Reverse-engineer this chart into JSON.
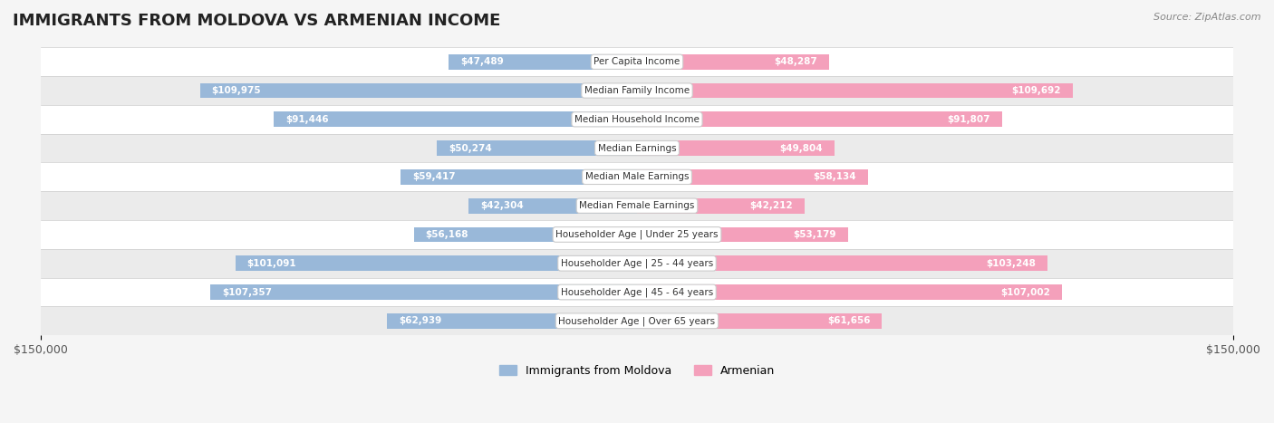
{
  "title": "IMMIGRANTS FROM MOLDOVA VS ARMENIAN INCOME",
  "source": "Source: ZipAtlas.com",
  "categories": [
    "Per Capita Income",
    "Median Family Income",
    "Median Household Income",
    "Median Earnings",
    "Median Male Earnings",
    "Median Female Earnings",
    "Householder Age | Under 25 years",
    "Householder Age | 25 - 44 years",
    "Householder Age | 45 - 64 years",
    "Householder Age | Over 65 years"
  ],
  "moldova_values": [
    47489,
    109975,
    91446,
    50274,
    59417,
    42304,
    56168,
    101091,
    107357,
    62939
  ],
  "armenian_values": [
    48287,
    109692,
    91807,
    49804,
    58134,
    42212,
    53179,
    103248,
    107002,
    61656
  ],
  "moldova_labels": [
    "$47,489",
    "$109,975",
    "$91,446",
    "$50,274",
    "$59,417",
    "$42,304",
    "$56,168",
    "$101,091",
    "$107,357",
    "$62,939"
  ],
  "armenian_labels": [
    "$48,287",
    "$109,692",
    "$91,807",
    "$49,804",
    "$58,134",
    "$42,212",
    "$53,179",
    "$103,248",
    "$107,002",
    "$61,656"
  ],
  "moldova_color": "#99b8d9",
  "armenian_color": "#f4a0bb",
  "moldova_color_dark": "#5b8fc4",
  "armenian_color_dark": "#e96fa0",
  "x_max": 150000,
  "bar_height": 0.35,
  "background_color": "#f5f5f5",
  "row_bg_color": "#ebebeb",
  "legend_moldova": "Immigrants from Moldova",
  "legend_armenian": "Armenian",
  "x_tick_labels": [
    "$150,000",
    "$150,000"
  ]
}
